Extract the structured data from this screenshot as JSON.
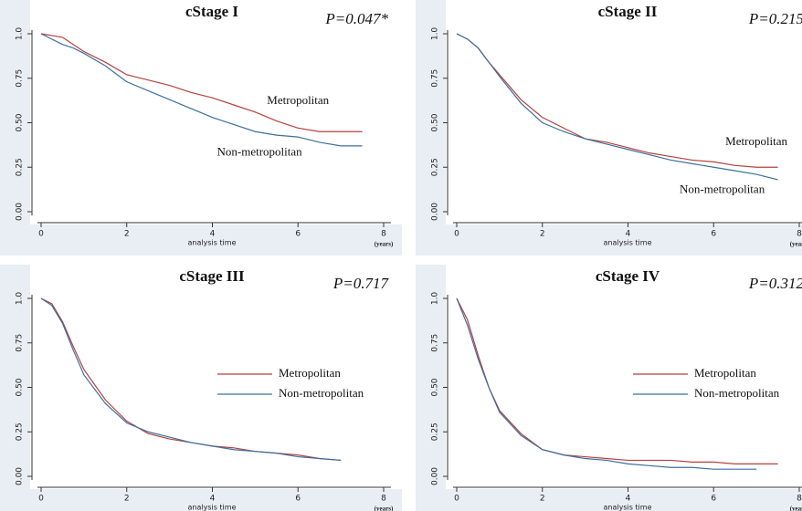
{
  "chart_data": [
    {
      "type": "line",
      "title": "cStage I",
      "annotation": "P=0.047*",
      "xlabel": "analysis time",
      "xunit": "(years)",
      "legend": "inline",
      "x": [
        0,
        0.25,
        0.5,
        0.75,
        1,
        1.5,
        2,
        2.5,
        3,
        3.5,
        4,
        4.5,
        5,
        5.5,
        6,
        6.5,
        7,
        7.5
      ],
      "series": [
        {
          "name": "Metropolitan",
          "color": "#b5413b",
          "values": [
            1,
            0.99,
            0.98,
            0.94,
            0.9,
            0.84,
            0.77,
            0.74,
            0.71,
            0.67,
            0.64,
            0.6,
            0.56,
            0.51,
            0.47,
            0.45,
            0.45,
            0.45
          ]
        },
        {
          "name": "Non-metropolitan",
          "color": "#3d6f9e",
          "values": [
            1,
            0.97,
            0.94,
            0.92,
            0.89,
            0.82,
            0.73,
            0.68,
            0.63,
            0.58,
            0.53,
            0.49,
            0.45,
            0.43,
            0.42,
            0.39,
            0.37,
            0.37
          ]
        }
      ],
      "xlim": [
        0,
        8
      ],
      "xticks": [
        0,
        2,
        4,
        6,
        8
      ],
      "ylim": [
        0,
        1
      ],
      "yticks": [
        {
          "value": 0,
          "label": "0.00"
        },
        {
          "value": 0.25,
          "label": "0.25"
        },
        {
          "value": 0.5,
          "label": "0.50"
        },
        {
          "value": 0.75,
          "label": "0.75"
        },
        {
          "value": 1,
          "label": "1.0"
        }
      ]
    },
    {
      "type": "line",
      "title": "cStage II",
      "annotation": "P=0.215",
      "xlabel": "analysis time",
      "xunit": "(years)",
      "legend": "inline",
      "x": [
        0,
        0.25,
        0.5,
        0.75,
        1,
        1.5,
        2,
        2.5,
        3,
        3.5,
        4,
        4.5,
        5,
        5.5,
        6,
        6.5,
        7,
        7.5
      ],
      "series": [
        {
          "name": "Metropolitan",
          "color": "#b5413b",
          "values": [
            1,
            0.97,
            0.92,
            0.84,
            0.77,
            0.63,
            0.53,
            0.47,
            0.41,
            0.39,
            0.36,
            0.33,
            0.31,
            0.29,
            0.28,
            0.26,
            0.25,
            0.25
          ]
        },
        {
          "name": "Non-metropolitan",
          "color": "#3d6f9e",
          "values": [
            1,
            0.97,
            0.92,
            0.84,
            0.76,
            0.61,
            0.5,
            0.45,
            0.41,
            0.38,
            0.35,
            0.32,
            0.29,
            0.27,
            0.25,
            0.23,
            0.21,
            0.18
          ]
        }
      ],
      "xlim": [
        0,
        8
      ],
      "xticks": [
        0,
        2,
        4,
        6,
        8
      ],
      "ylim": [
        0,
        1
      ],
      "yticks": [
        {
          "value": 0,
          "label": "0.00"
        },
        {
          "value": 0.25,
          "label": "0.25"
        },
        {
          "value": 0.5,
          "label": "0.50"
        },
        {
          "value": 0.75,
          "label": "0.75"
        },
        {
          "value": 1,
          "label": "1.0"
        }
      ]
    },
    {
      "type": "line",
      "title": "cStage III",
      "annotation": "P=0.717",
      "xlabel": "analysis time",
      "xunit": "(years)",
      "legend": "center right",
      "x": [
        0,
        0.25,
        0.5,
        0.75,
        1,
        1.5,
        2,
        2.5,
        3,
        3.5,
        4,
        4.5,
        5,
        5.5,
        6,
        6.5,
        7,
        7.5
      ],
      "series": [
        {
          "name": "Metropolitan",
          "color": "#b5413b",
          "values": [
            1,
            0.97,
            0.87,
            0.73,
            0.6,
            0.43,
            0.31,
            0.24,
            0.21,
            0.19,
            0.17,
            0.16,
            0.14,
            0.13,
            0.12,
            0.1,
            0.09,
            null
          ]
        },
        {
          "name": "Non-metropolitan",
          "color": "#3d6f9e",
          "values": [
            1,
            0.96,
            0.86,
            0.71,
            0.57,
            0.41,
            0.3,
            0.25,
            0.22,
            0.19,
            0.17,
            0.15,
            0.14,
            0.13,
            0.11,
            0.1,
            0.09,
            null
          ]
        }
      ],
      "xlim": [
        0,
        8
      ],
      "xticks": [
        0,
        2,
        4,
        6,
        8
      ],
      "ylim": [
        0,
        1
      ],
      "yticks": [
        {
          "value": 0,
          "label": "0.00"
        },
        {
          "value": 0.25,
          "label": "0.25"
        },
        {
          "value": 0.5,
          "label": "0.50"
        },
        {
          "value": 0.75,
          "label": "0.75"
        },
        {
          "value": 1,
          "label": "1.0"
        }
      ]
    },
    {
      "type": "line",
      "title": "cStage IV",
      "annotation": "P=0.312",
      "xlabel": "analysis time",
      "xunit": "(years)",
      "legend": "center right",
      "x": [
        0,
        0.25,
        0.5,
        0.75,
        1,
        1.5,
        2,
        2.5,
        3,
        3.5,
        4,
        4.5,
        5,
        5.5,
        6,
        6.5,
        7,
        7.5
      ],
      "series": [
        {
          "name": "Metropolitan",
          "color": "#b5413b",
          "values": [
            1,
            0.88,
            0.68,
            0.5,
            0.37,
            0.24,
            0.15,
            0.12,
            0.11,
            0.1,
            0.09,
            0.09,
            0.09,
            0.08,
            0.08,
            0.07,
            0.07,
            0.07
          ]
        },
        {
          "name": "Non-metropolitan",
          "color": "#3d6f9e",
          "values": [
            1,
            0.85,
            0.66,
            0.5,
            0.36,
            0.23,
            0.15,
            0.12,
            0.1,
            0.09,
            0.07,
            0.06,
            0.05,
            0.05,
            0.04,
            0.04,
            0.04,
            null
          ]
        }
      ],
      "xlim": [
        0,
        8
      ],
      "xticks": [
        0,
        2,
        4,
        6,
        8
      ],
      "ylim": [
        0,
        1
      ],
      "yticks": [
        {
          "value": 0,
          "label": "0.00"
        },
        {
          "value": 0.25,
          "label": "0.25"
        },
        {
          "value": 0.5,
          "label": "0.50"
        },
        {
          "value": 0.75,
          "label": "0.75"
        },
        {
          "value": 1,
          "label": "1.0"
        }
      ]
    }
  ]
}
